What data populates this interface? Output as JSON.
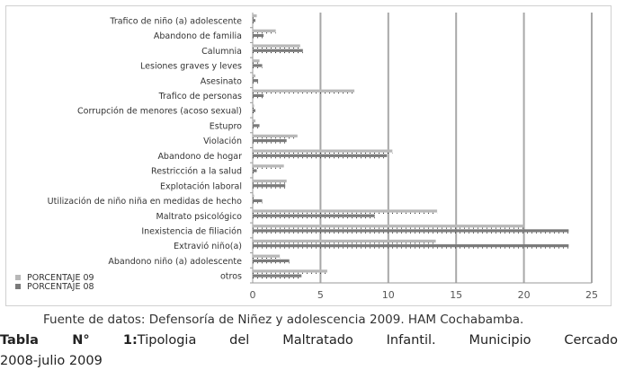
{
  "chart_data": {
    "type": "bar",
    "orientation": "horizontal",
    "categories": [
      "Trafico de niño (a) adolescente",
      "Abandono de familia",
      "Calumnia",
      "Lesiones graves y leves",
      "Asesinato",
      "Trafico de personas",
      "Corrupción de menores (acoso sexual)",
      "Estupro",
      "Violación",
      "Abandono de hogar",
      "Restricción a la salud",
      "Explotación laboral",
      "Utilización de niño niña en medidas de hecho",
      "Maltrato psicológico",
      "Inexistencia de filiación",
      "Extravió niño(a)",
      "Abandono niño (a) adolescente",
      "otros"
    ],
    "series": [
      {
        "name": "PORCENTAJE 09",
        "color": "#b8b8b8",
        "values": [
          0.3,
          1.7,
          3.5,
          0.5,
          0.2,
          7.5,
          0.1,
          0.2,
          3.3,
          10.3,
          2.3,
          2.5,
          0.1,
          13.6,
          20.0,
          13.5,
          2.0,
          5.5
        ]
      },
      {
        "name": "PORCENTAJE 08",
        "color": "#7a7a7a",
        "values": [
          0.2,
          0.8,
          3.7,
          0.7,
          0.4,
          0.8,
          0.2,
          0.5,
          2.5,
          9.9,
          0.3,
          2.4,
          0.7,
          9.0,
          23.3,
          23.3,
          2.7,
          3.6
        ]
      }
    ],
    "xlim": [
      0,
      25
    ],
    "xticks": [
      "0",
      "5",
      "10",
      "15",
      "20",
      "25"
    ],
    "grid": true,
    "legend": "bottom-left"
  },
  "caption": {
    "source": "Fuente de datos: Defensoría de Niñez y adolescencia 2009. HAM Cochabamba.",
    "table_label": "Tabla N° 1:",
    "title_line1": "Tipologia del Maltratado Infantil. Municipio Cercado",
    "title_line2": "2008-julio 2009"
  }
}
